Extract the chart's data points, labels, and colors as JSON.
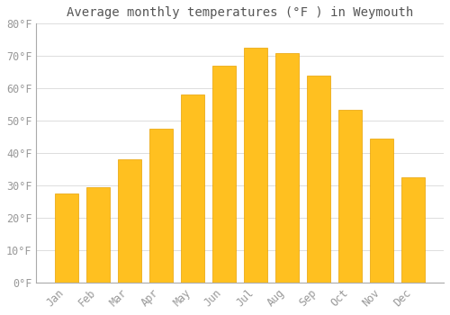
{
  "title": "Average monthly temperatures (°F ) in Weymouth",
  "months": [
    "Jan",
    "Feb",
    "Mar",
    "Apr",
    "May",
    "Jun",
    "Jul",
    "Aug",
    "Sep",
    "Oct",
    "Nov",
    "Dec"
  ],
  "values": [
    27.5,
    29.5,
    38.0,
    47.5,
    58.0,
    67.0,
    72.5,
    71.0,
    64.0,
    53.5,
    44.5,
    32.5
  ],
  "bar_color_top": "#FFC020",
  "bar_color_bottom": "#F5A800",
  "bar_edge_color": "#E8A000",
  "background_color": "#FFFFFF",
  "grid_color": "#DDDDDD",
  "text_color": "#999999",
  "spine_color": "#AAAAAA",
  "ylim": [
    0,
    80
  ],
  "ytick_step": 10,
  "title_fontsize": 10,
  "tick_fontsize": 8.5
}
